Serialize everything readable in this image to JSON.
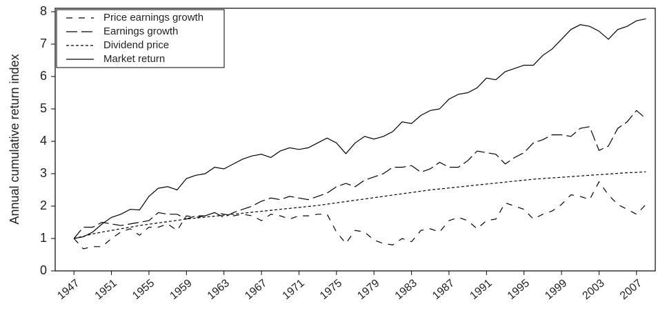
{
  "chart_data": {
    "type": "line",
    "ylabel": "Annual cumulative return index",
    "x": [
      1947,
      1948,
      1949,
      1950,
      1951,
      1952,
      1953,
      1954,
      1955,
      1956,
      1957,
      1958,
      1959,
      1960,
      1961,
      1962,
      1963,
      1964,
      1965,
      1966,
      1967,
      1968,
      1969,
      1970,
      1971,
      1972,
      1973,
      1974,
      1975,
      1976,
      1977,
      1978,
      1979,
      1980,
      1981,
      1982,
      1983,
      1984,
      1985,
      1986,
      1987,
      1988,
      1989,
      1990,
      1991,
      1992,
      1993,
      1994,
      1995,
      1996,
      1997,
      1998,
      1999,
      2000,
      2001,
      2002,
      2003,
      2004,
      2005,
      2006,
      2007,
      2008
    ],
    "series": [
      {
        "name": "Price earnings growth",
        "color": "#000000",
        "dash": "9,9",
        "values": [
          1.0,
          0.68,
          0.75,
          0.75,
          1.0,
          1.2,
          1.3,
          1.1,
          1.35,
          1.35,
          1.45,
          1.25,
          1.7,
          1.65,
          1.7,
          1.8,
          1.75,
          1.7,
          1.75,
          1.7,
          1.55,
          1.75,
          1.7,
          1.6,
          1.7,
          1.7,
          1.75,
          1.75,
          1.2,
          0.85,
          1.25,
          1.2,
          0.95,
          0.85,
          0.8,
          1.0,
          0.9,
          1.25,
          1.3,
          1.2,
          1.55,
          1.65,
          1.55,
          1.3,
          1.55,
          1.6,
          2.1,
          2.0,
          1.9,
          1.6,
          1.75,
          1.85,
          2.05,
          2.35,
          2.3,
          2.2,
          2.75,
          2.35,
          2.05,
          1.9,
          1.75,
          2.05
        ]
      },
      {
        "name": "Earnings growth",
        "color": "#000000",
        "dash": "16,6",
        "values": [
          1.0,
          1.35,
          1.35,
          1.5,
          1.45,
          1.4,
          1.45,
          1.5,
          1.55,
          1.8,
          1.75,
          1.75,
          1.6,
          1.7,
          1.7,
          1.8,
          1.65,
          1.8,
          1.9,
          2.0,
          2.15,
          2.25,
          2.2,
          2.3,
          2.25,
          2.2,
          2.3,
          2.4,
          2.6,
          2.7,
          2.6,
          2.8,
          2.9,
          3.0,
          3.2,
          3.2,
          3.25,
          3.05,
          3.15,
          3.35,
          3.2,
          3.2,
          3.4,
          3.7,
          3.65,
          3.6,
          3.3,
          3.5,
          3.65,
          3.95,
          4.05,
          4.2,
          4.2,
          4.15,
          4.4,
          4.45,
          3.72,
          3.85,
          4.4,
          4.6,
          4.95,
          4.7
        ]
      },
      {
        "name": "Dividend price",
        "color": "#000000",
        "dash": "4,3",
        "values": [
          1.0,
          1.07,
          1.14,
          1.2,
          1.25,
          1.3,
          1.35,
          1.4,
          1.44,
          1.48,
          1.52,
          1.56,
          1.6,
          1.63,
          1.66,
          1.69,
          1.72,
          1.75,
          1.78,
          1.81,
          1.84,
          1.87,
          1.9,
          1.93,
          1.96,
          1.99,
          2.02,
          2.06,
          2.1,
          2.14,
          2.18,
          2.22,
          2.26,
          2.3,
          2.34,
          2.38,
          2.42,
          2.46,
          2.5,
          2.53,
          2.56,
          2.59,
          2.62,
          2.65,
          2.68,
          2.71,
          2.74,
          2.77,
          2.8,
          2.83,
          2.85,
          2.87,
          2.89,
          2.91,
          2.93,
          2.95,
          2.97,
          2.99,
          3.01,
          3.03,
          3.04,
          3.06
        ]
      },
      {
        "name": "Market return",
        "color": "#000000",
        "dash": "none",
        "values": [
          1.0,
          1.05,
          1.2,
          1.45,
          1.65,
          1.75,
          1.9,
          1.88,
          2.3,
          2.55,
          2.6,
          2.5,
          2.85,
          2.95,
          3.0,
          3.2,
          3.15,
          3.3,
          3.45,
          3.55,
          3.6,
          3.5,
          3.7,
          3.8,
          3.75,
          3.8,
          3.95,
          4.1,
          3.95,
          3.62,
          3.95,
          4.15,
          4.07,
          4.15,
          4.3,
          4.6,
          4.55,
          4.8,
          4.95,
          5.0,
          5.3,
          5.45,
          5.5,
          5.65,
          5.95,
          5.9,
          6.15,
          6.25,
          6.35,
          6.35,
          6.65,
          6.85,
          7.15,
          7.45,
          7.6,
          7.55,
          7.4,
          7.15,
          7.45,
          7.55,
          7.72,
          7.78
        ]
      }
    ],
    "xlim": [
      1945,
      2009
    ],
    "xticks": [
      1947,
      1951,
      1955,
      1959,
      1963,
      1967,
      1971,
      1975,
      1979,
      1983,
      1987,
      1991,
      1995,
      1999,
      2003,
      2007
    ],
    "ylim": [
      0,
      8
    ],
    "yticks": [
      0,
      1,
      2,
      3,
      4,
      5,
      6,
      7,
      8
    ],
    "legend": "upper left"
  }
}
